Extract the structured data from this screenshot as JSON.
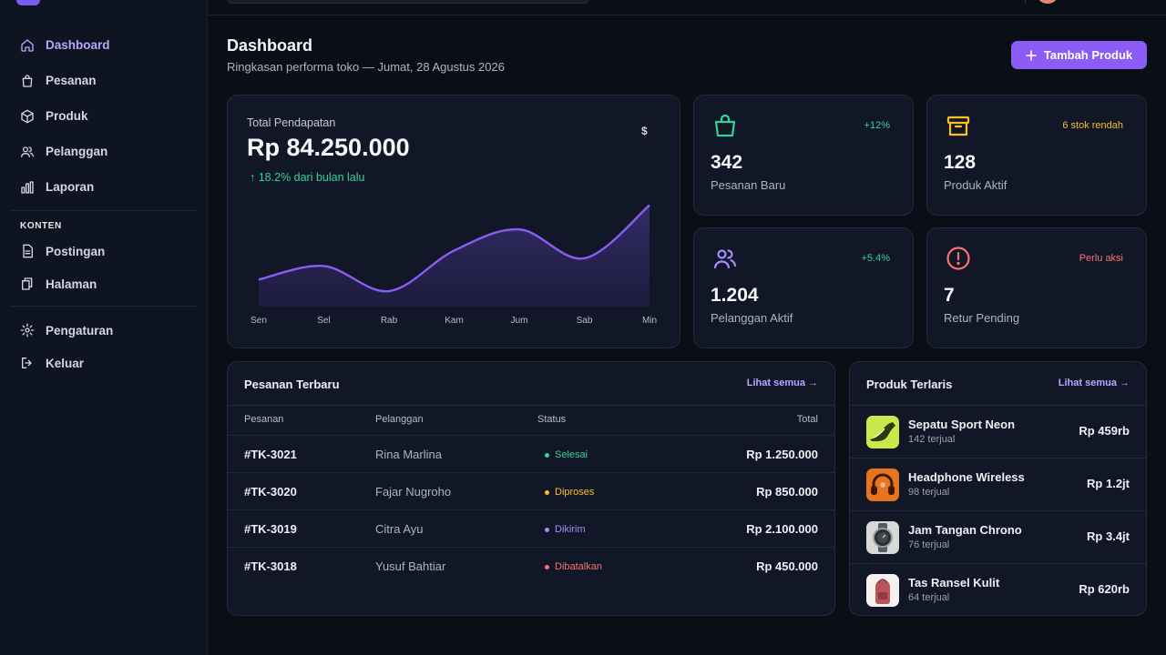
{
  "sidebar": {
    "items": [
      {
        "label": "Dashboard",
        "icon": "home-icon",
        "active": true
      },
      {
        "label": "Pesanan",
        "icon": "shopping-bag-icon"
      },
      {
        "label": "Produk",
        "icon": "box-icon"
      },
      {
        "label": "Pelanggan",
        "icon": "users-icon"
      },
      {
        "label": "Laporan",
        "icon": "bar-chart-icon"
      }
    ],
    "section_label": "KONTEN",
    "content_items": [
      {
        "label": "Postingan",
        "icon": "document-icon"
      },
      {
        "label": "Halaman",
        "icon": "pages-icon"
      }
    ],
    "bottom_items": [
      {
        "label": "Pengaturan",
        "icon": "gear-icon"
      },
      {
        "label": "Keluar",
        "icon": "logout-icon"
      }
    ]
  },
  "header": {
    "title": "Dashboard",
    "subtitle": "Ringkasan performa toko — Jumat, 28 Agustus 2026",
    "add_button": "Tambah Produk"
  },
  "revenue": {
    "label": "Total Pendapatan",
    "value": "Rp 84.250.000",
    "change": "18.2% dari bulan lalu",
    "currency_symbol": "$"
  },
  "chart_data": {
    "type": "area",
    "categories": [
      "Sen",
      "Sel",
      "Rab",
      "Kam",
      "Jum",
      "Sab",
      "Min"
    ],
    "values": [
      28,
      42,
      16,
      58,
      80,
      50,
      105
    ],
    "ylim": [
      0,
      115
    ],
    "grid": false,
    "color": "#8b5cf6"
  },
  "stats": [
    {
      "value": "342",
      "label": "Pesanan Baru",
      "badge": "+12%",
      "badge_color": "#34d399",
      "icon": "shopping-bag-icon",
      "icon_color": "#34d399"
    },
    {
      "value": "128",
      "label": "Produk Aktif",
      "badge": "6 stok rendah",
      "badge_color": "#fbbf24",
      "icon": "archive-icon",
      "icon_color": "#fbbf24"
    },
    {
      "value": "1.204",
      "label": "Pelanggan Aktif",
      "badge": "+5.4%",
      "badge_color": "#34d399",
      "icon": "users-icon",
      "icon_color": "#a78bfa"
    },
    {
      "value": "7",
      "label": "Retur Pending",
      "badge": "Perlu aksi",
      "badge_color": "#f87171",
      "icon": "alert-circle-icon",
      "icon_color": "#f87171"
    }
  ],
  "orders": {
    "title": "Pesanan Terbaru",
    "link": "Lihat semua →",
    "columns": [
      "Pesanan",
      "Pelanggan",
      "Status",
      "Total"
    ],
    "rows": [
      {
        "id": "#TK-3021",
        "customer": "Rina Marlina",
        "status": "Selesai",
        "status_color": "#34d399",
        "total": "Rp 1.250.000"
      },
      {
        "id": "#TK-3020",
        "customer": "Fajar Nugroho",
        "status": "Diproses",
        "status_color": "#fbbf24",
        "total": "Rp 850.000"
      },
      {
        "id": "#TK-3019",
        "customer": "Citra Ayu",
        "status": "Dikirim",
        "status_color": "#a78bfa",
        "total": "Rp 2.100.000"
      },
      {
        "id": "#TK-3018",
        "customer": "Yusuf Bahtiar",
        "status": "Dibatalkan",
        "status_color": "#f87171",
        "total": "Rp 450.000"
      }
    ]
  },
  "products": {
    "title": "Produk Terlaris",
    "link": "Lihat semua →",
    "items": [
      {
        "name": "Sepatu Sport Neon",
        "sold": "142 terjual",
        "price": "Rp 459rb"
      },
      {
        "name": "Headphone Wireless",
        "sold": "98 terjual",
        "price": "Rp 1.2jt"
      },
      {
        "name": "Jam Tangan Chrono",
        "sold": "76 terjual",
        "price": "Rp 3.4jt"
      },
      {
        "name": "Tas Ransel Kulit",
        "sold": "64 terjual",
        "price": "Rp 620rb"
      }
    ]
  }
}
